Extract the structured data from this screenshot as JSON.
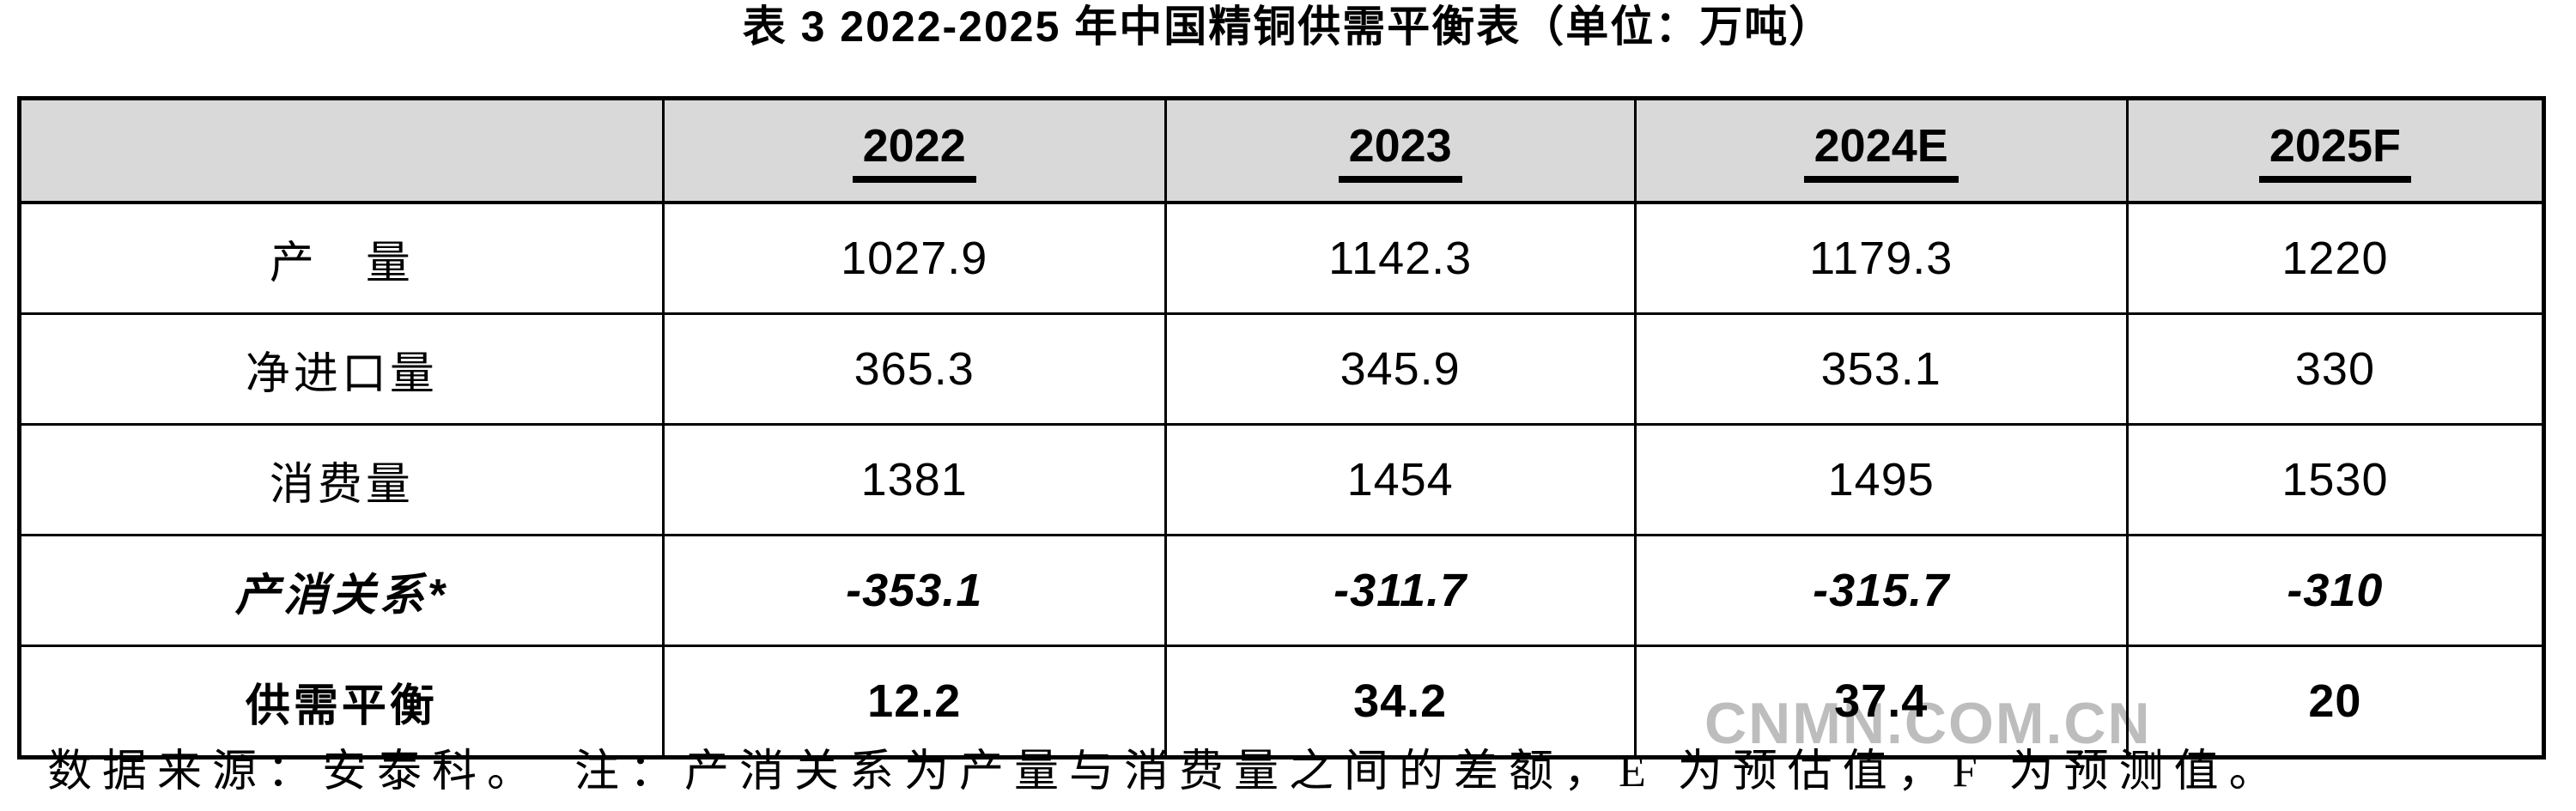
{
  "title": "表 3 2022-2025 年中国精铜供需平衡表（单位：万吨）",
  "watermark": "CNMN.COM.CN",
  "footer_note": "数据来源：安泰科。　注：产消关系为产量与消费量之间的差额，E 为预估值，F 为预测值。",
  "table": {
    "columns": [
      "",
      "2022",
      "2023",
      "2024E",
      "2025F"
    ],
    "rows": [
      {
        "label": "产　量",
        "values": [
          "1027.9",
          "1142.3",
          "1179.3",
          "1220"
        ]
      },
      {
        "label": "净进口量",
        "values": [
          "365.3",
          "345.9",
          "353.1",
          "330"
        ]
      },
      {
        "label": "消费量",
        "values": [
          "1381",
          "1454",
          "1495",
          "1530"
        ]
      },
      {
        "label": "产消关系*",
        "values": [
          "-353.1",
          "-311.7",
          "-315.7",
          "-310"
        ]
      },
      {
        "label": "供需平衡",
        "values": [
          "12.2",
          "34.2",
          "37.4",
          "20"
        ]
      }
    ]
  },
  "colors": {
    "header_background": "#d9d9d9",
    "border": "#000000",
    "watermark": "#bdbdbd"
  }
}
